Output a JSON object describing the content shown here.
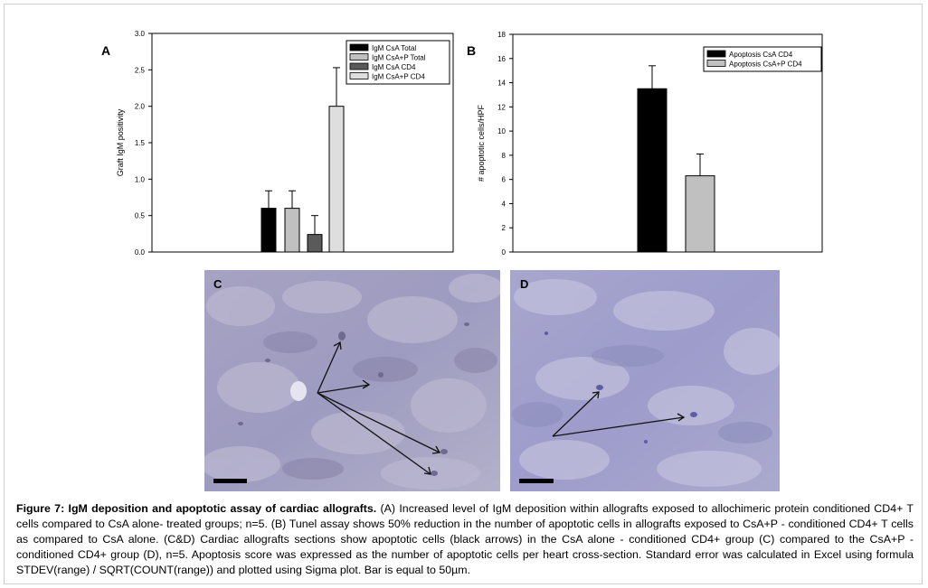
{
  "figure": {
    "caption_label": "Figure 7:",
    "caption_title": "IgM deposition and apoptotic assay of cardiac allografts.",
    "caption_body": "(A) Increased level of IgM deposition within allografts exposed to allochimeric protein conditioned CD4+ T cells compared to CsA alone- treated groups; n=5. (B) Tunel assay shows 50% reduction in the number of apoptotic cells in allografts exposed to CsA+P - conditioned CD4+ T cells as compared to CsA alone. (C&D) Cardiac allografts sections show apoptotic cells (black arrows) in the CsA alone - conditioned CD4+ group (C) compared to the CsA+P - conditioned CD4+ group (D), n=5. Apoptosis score was expressed as the number of apoptotic cells per heart cross-section. Standard error was calculated in Excel using formula STDEV(range) / SQRT(COUNT(range)) and plotted using Sigma plot.   Bar is equal to 50µm."
  },
  "panels": {
    "a": {
      "letter": "A"
    },
    "b": {
      "letter": "B"
    },
    "c": {
      "letter": "C"
    },
    "d": {
      "letter": "D"
    }
  },
  "chart_data": [
    {
      "type": "bar",
      "panel": "A",
      "ylabel": "Graft IgM positivity",
      "xlabel": "",
      "ylim": [
        0,
        3.0
      ],
      "yticks": [
        "0.0",
        "0.5",
        "1.0",
        "1.5",
        "2.0",
        "2.5",
        "3.0"
      ],
      "legend_position": "top-right",
      "series": [
        {
          "name": "IgM CsA Total",
          "value": 0.6,
          "error": 0.24,
          "color": "#000000"
        },
        {
          "name": "IgM CsA+P Total",
          "value": 0.6,
          "error": 0.24,
          "color": "#c0c0c0"
        },
        {
          "name": "IgM CsA CD4",
          "value": 0.24,
          "error": 0.26,
          "color": "#5a5a5a"
        },
        {
          "name": "IgM CsA+P CD4",
          "value": 2.0,
          "error": 0.53,
          "color": "#dedede"
        }
      ]
    },
    {
      "type": "bar",
      "panel": "B",
      "ylabel": "# apoptotic cells/HPF",
      "xlabel": "",
      "ylim": [
        0,
        18
      ],
      "yticks": [
        "0",
        "2",
        "4",
        "6",
        "8",
        "10",
        "12",
        "14",
        "16",
        "18"
      ],
      "legend_position": "top-right",
      "series": [
        {
          "name": "Apoptosis CsA CD4",
          "value": 13.5,
          "error": 1.9,
          "color": "#000000"
        },
        {
          "name": "Apoptosis CsA+P CD4",
          "value": 6.3,
          "error": 1.8,
          "color": "#c0c0c0"
        }
      ]
    }
  ]
}
